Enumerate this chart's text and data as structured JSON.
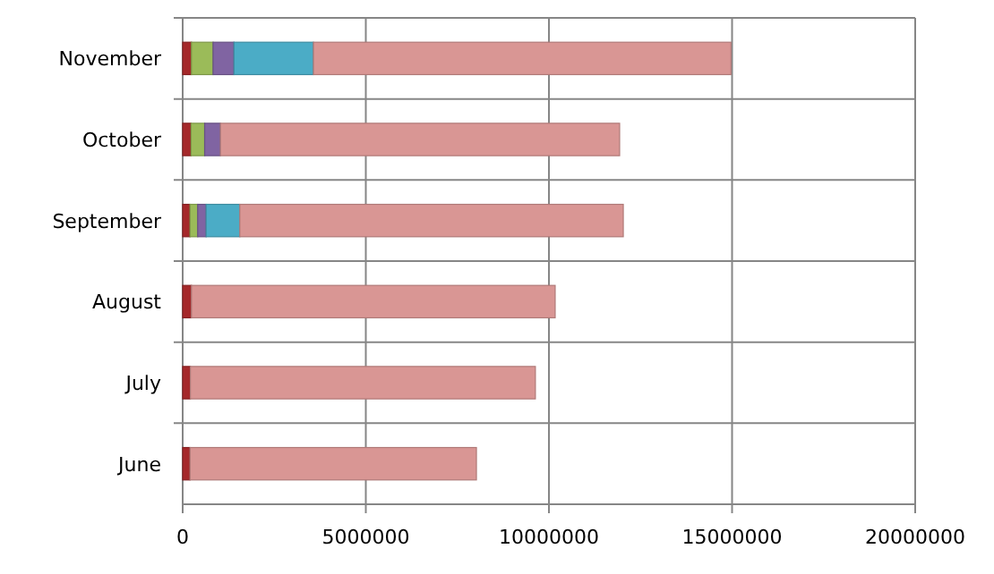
{
  "chart_data": {
    "type": "bar",
    "orientation": "horizontal",
    "stacked": true,
    "categories": [
      "November",
      "October",
      "September",
      "August",
      "July",
      "June"
    ],
    "series": [
      {
        "color": "#a5282a",
        "values": [
          240000,
          230000,
          200000,
          240000,
          210000,
          200000
        ]
      },
      {
        "color": "#9bbb59",
        "values": [
          590000,
          370000,
          210000,
          0,
          0,
          0
        ]
      },
      {
        "color": "#8064a2",
        "values": [
          570000,
          430000,
          230000,
          0,
          0,
          0
        ]
      },
      {
        "color": "#4bacc6",
        "values": [
          2170000,
          0,
          920000,
          0,
          0,
          0
        ]
      },
      {
        "color": "#d99694",
        "values": [
          11400000,
          10900000,
          10470000,
          9930000,
          9420000,
          7820000
        ]
      }
    ],
    "xlim": [
      0,
      20000000
    ],
    "xticks": [
      0,
      5000000,
      10000000,
      15000000,
      20000000
    ],
    "grid": true
  }
}
